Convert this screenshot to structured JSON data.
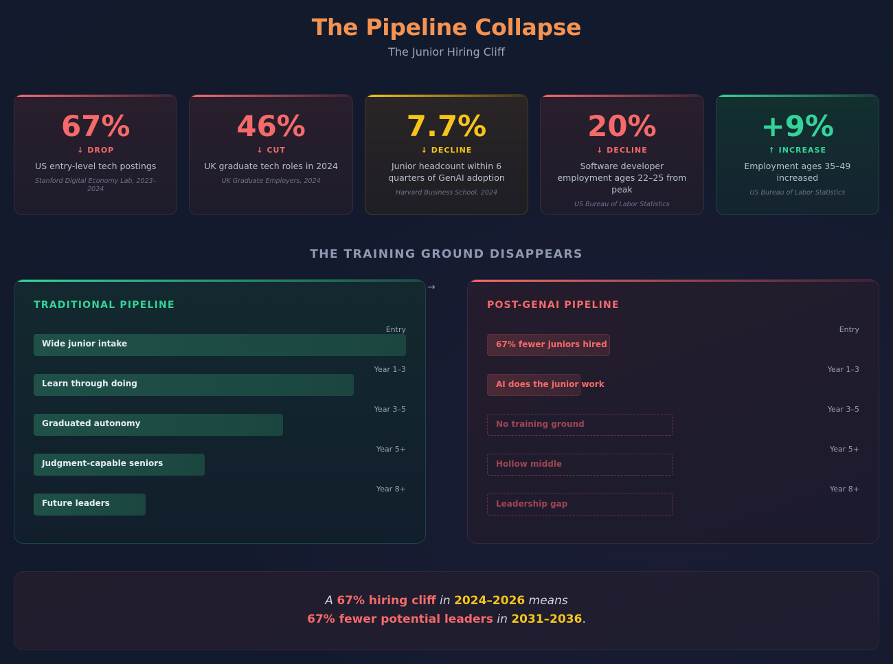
{
  "header": {
    "title": "The Pipeline Collapse",
    "subtitle": "The Junior Hiring Cliff"
  },
  "stats": [
    {
      "value": "67%",
      "direction": "↓ DROP",
      "desc": "US entry-level tech postings",
      "source": "Stanford Digital Economy Lab, 2023–2024",
      "tone": "red"
    },
    {
      "value": "46%",
      "direction": "↓ CUT",
      "desc": "UK graduate tech roles in 2024",
      "source": "UK Graduate Employers, 2024",
      "tone": "red"
    },
    {
      "value": "7.7%",
      "direction": "↓ DECLINE",
      "desc": "Junior headcount within 6 quarters of GenAI adoption",
      "source": "Harvard Business School, 2024",
      "tone": "yellow"
    },
    {
      "value": "20%",
      "direction": "↓ DECLINE",
      "desc": "Software developer employment ages 22–25 from peak",
      "source": "US Bureau of Labor Statistics",
      "tone": "red"
    },
    {
      "value": "+9%",
      "direction": "↑ INCREASE",
      "desc": "Employment ages 35–49 increased",
      "source": "US Bureau of Labor Statistics",
      "tone": "green"
    }
  ],
  "section_title": "THE TRAINING GROUND DISAPPEARS",
  "arrow": "→",
  "traditional": {
    "title": "TRADITIONAL PIPELINE",
    "stages": [
      {
        "stage": "Entry",
        "label": "Wide junior intake",
        "relative_width": 1.0
      },
      {
        "stage": "Year 1–3",
        "label": "Learn through doing",
        "relative_width": 0.86
      },
      {
        "stage": "Year 3–5",
        "label": "Graduated autonomy",
        "relative_width": 0.67
      },
      {
        "stage": "Year 5+",
        "label": "Judgment-capable seniors",
        "relative_width": 0.46
      },
      {
        "stage": "Year 8+",
        "label": "Future leaders",
        "relative_width": 0.3
      }
    ]
  },
  "post_genai": {
    "title": "POST-GENAI PIPELINE",
    "stages": [
      {
        "stage": "Entry",
        "label": "67% fewer juniors hired",
        "relative_width": 0.33,
        "style": "filled"
      },
      {
        "stage": "Year 1–3",
        "label": "AI does the junior work",
        "relative_width": 0.25,
        "style": "filled"
      },
      {
        "stage": "Year 3–5",
        "label": "No training ground",
        "relative_width": 0.5,
        "style": "faded"
      },
      {
        "stage": "Year 5+",
        "label": "Hollow middle",
        "relative_width": 0.5,
        "style": "faded"
      },
      {
        "stage": "Year 8+",
        "label": "Leadership gap",
        "relative_width": 0.5,
        "style": "faded"
      }
    ]
  },
  "summary": {
    "line1": {
      "pre": "A ",
      "hl1": "67% hiring cliff",
      "mid": " in ",
      "hl2": "2024–2026",
      "post": " means"
    },
    "line2": {
      "hl1": "67% fewer potential leaders",
      "mid": " in ",
      "hl2": "2031–2036",
      "post": "."
    }
  },
  "colors": {
    "accent_orange": "#f59352",
    "red": "#f56a6a",
    "yellow": "#f5c518",
    "green": "#34d399"
  }
}
